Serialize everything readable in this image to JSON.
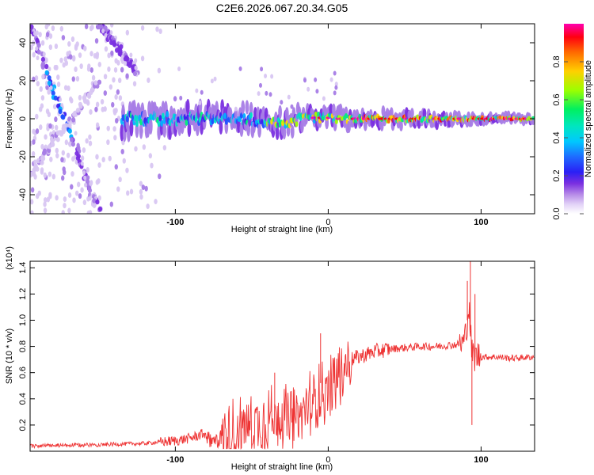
{
  "title": "C2E6.2026.067.20.34.G05",
  "colors": {
    "snr_line": "#ee3333",
    "axis": "#000000",
    "colormap": [
      "#ffffff",
      "#d8c6f2",
      "#a67ce6",
      "#7a2fe0",
      "#3a1df0",
      "#1e4fff",
      "#00b0ff",
      "#00e0c8",
      "#00f07a",
      "#a0ff00",
      "#ffd800",
      "#ff7000",
      "#ff0000",
      "#ff00a8"
    ]
  },
  "chart_data": [
    {
      "type": "heatmap",
      "xlabel": "Height of straight line (km)",
      "ylabel": "Frequency (Hz)",
      "xlim": [
        -195,
        135
      ],
      "ylim": [
        -50,
        50
      ],
      "x_ticks": [
        -100,
        0,
        100
      ],
      "x_tick_labels": [
        "-100",
        "0",
        "100"
      ],
      "x_tick_bold": [
        true,
        false,
        true
      ],
      "y_ticks": [
        -40,
        -20,
        0,
        20,
        40
      ],
      "y_tick_labels": [
        "-40",
        "-20",
        "0",
        "20",
        "40"
      ],
      "features": [
        {
          "name": "main-ridge",
          "x_range": [
            -135,
            135
          ],
          "center_hz": 0,
          "note": "broad noisy band near 0 Hz, narrowing and strengthening toward positive heights"
        },
        {
          "name": "diagonal-track-1",
          "from": [
            -195,
            48
          ],
          "to": [
            -150,
            -48
          ]
        },
        {
          "name": "diagonal-track-2",
          "from": [
            -150,
            50
          ],
          "to": [
            -125,
            25
          ]
        },
        {
          "name": "diagonal-track-3",
          "from": [
            -195,
            -30
          ],
          "to": [
            -150,
            20
          ]
        }
      ],
      "colorbar": {
        "label": "Normalized spectral amplitude",
        "range": [
          0.0,
          1.0
        ],
        "ticks": [
          0.0,
          0.2,
          0.4,
          0.6,
          0.8
        ],
        "tick_labels": [
          "0.0",
          "0.2",
          "0.4",
          "0.6",
          "0.8"
        ]
      }
    },
    {
      "type": "line",
      "xlabel": "Height of straight line (km)",
      "ylabel": "SNR (10 * v/v)",
      "y_scale_note": "(x10⁴)",
      "xlim": [
        -195,
        135
      ],
      "ylim": [
        0,
        1.45
      ],
      "x_ticks": [
        -100,
        0,
        100
      ],
      "x_tick_labels": [
        "-100",
        "0",
        "100"
      ],
      "x_tick_bold": [
        true,
        false,
        true
      ],
      "y_ticks": [
        0.2,
        0.4,
        0.6,
        0.8,
        1.0,
        1.2,
        1.4
      ],
      "y_tick_labels": [
        "0.2",
        "0.4",
        "0.6",
        "0.8",
        "1.0",
        "1.2",
        "1.4"
      ],
      "series": [
        {
          "name": "SNR",
          "x": [
            -195,
            -150,
            -120,
            -100,
            -90,
            -80,
            -70,
            -60,
            -50,
            -40,
            -35,
            -30,
            -25,
            -20,
            -15,
            -10,
            -5,
            0,
            5,
            10,
            15,
            20,
            30,
            40,
            50,
            60,
            70,
            80,
            88,
            90,
            92,
            94,
            96,
            98,
            100,
            110,
            120,
            135
          ],
          "values": [
            0.04,
            0.05,
            0.06,
            0.08,
            0.1,
            0.14,
            0.2,
            0.22,
            0.28,
            0.3,
            0.33,
            0.35,
            0.3,
            0.32,
            0.4,
            0.45,
            0.52,
            0.55,
            0.6,
            0.65,
            0.7,
            0.72,
            0.76,
            0.78,
            0.79,
            0.8,
            0.8,
            0.81,
            0.82,
            0.9,
            1.1,
            0.75,
            0.72,
            0.73,
            0.72,
            0.72,
            0.71,
            0.72
          ]
        }
      ],
      "spikes": [
        {
          "x": -5,
          "y": 0.9
        },
        {
          "x": -35,
          "y": 0.6
        },
        {
          "x": 93,
          "y": 1.47
        },
        {
          "x": 94,
          "y": 0.2
        },
        {
          "x": 91,
          "y": 1.3
        },
        {
          "x": 96,
          "y": 1.2
        }
      ]
    }
  ]
}
